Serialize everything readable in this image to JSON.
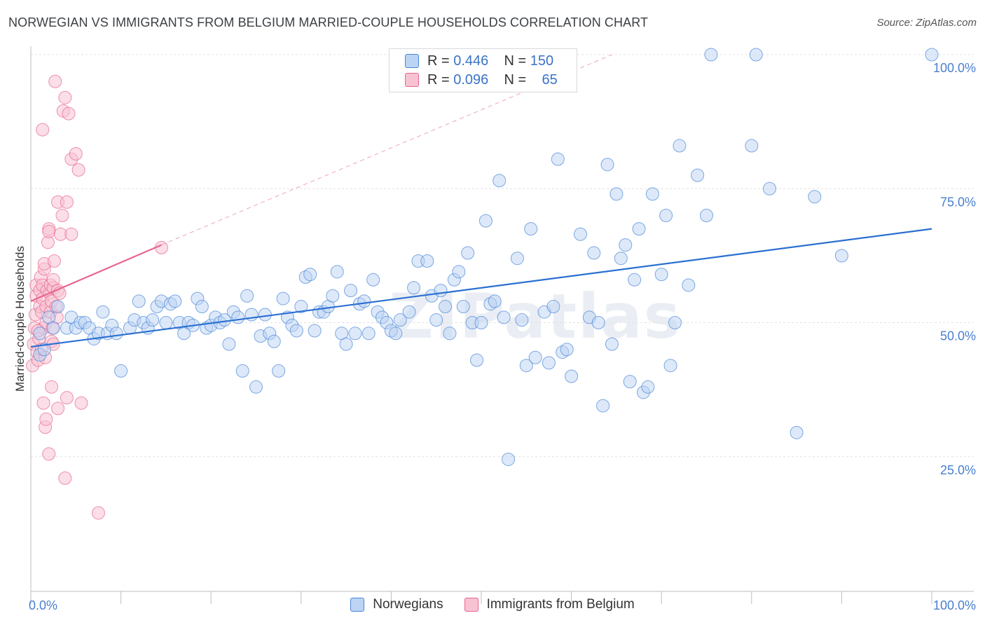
{
  "title": "NORWEGIAN VS IMMIGRANTS FROM BELGIUM MARRIED-COUPLE HOUSEHOLDS CORRELATION CHART",
  "source": "Source: ZipAtlas.com",
  "watermark": "ZIPatlas",
  "legend": {
    "rows": [
      {
        "r_label": "R =",
        "r_value": "0.446",
        "n_label": "N =",
        "n_value": "150"
      },
      {
        "r_label": "R =",
        "r_value": "0.096",
        "n_label": "N =",
        "n_value": "65"
      }
    ]
  },
  "bottom_legend": {
    "series1": "Norwegians",
    "series2": "Immigrants from Belgium"
  },
  "colors": {
    "blue": "#4a86d8",
    "blue_fill": "#bcd4f4",
    "pink": "#e8658f",
    "pink_fill": "#f7c3d3",
    "tick": "#4a7fcf"
  },
  "chart_data": {
    "type": "scatter",
    "title": "NORWEGIAN VS IMMIGRANTS FROM BELGIUM MARRIED-COUPLE HOUSEHOLDS CORRELATION CHART",
    "xlabel": "",
    "ylabel": "Married-couple Households",
    "xlim": [
      0,
      100
    ],
    "ylim": [
      0,
      100
    ],
    "x_tick_labels": [
      "0.0%",
      "100.0%"
    ],
    "y_tick_labels": [
      "25.0%",
      "50.0%",
      "75.0%",
      "100.0%"
    ],
    "y_ticks": [
      25,
      50,
      75,
      100
    ],
    "series": [
      {
        "name": "Norwegians",
        "r": 0.446,
        "n": 150,
        "trend": {
          "x": [
            0,
            100
          ],
          "y": [
            45.5,
            67.5
          ]
        },
        "points": [
          [
            1,
            44
          ],
          [
            1,
            48
          ],
          [
            1.5,
            45
          ],
          [
            2,
            51
          ],
          [
            2.5,
            49
          ],
          [
            3,
            53
          ],
          [
            4,
            49
          ],
          [
            4.5,
            51
          ],
          [
            5,
            49
          ],
          [
            5.5,
            50
          ],
          [
            6,
            50
          ],
          [
            6.5,
            49
          ],
          [
            7,
            47
          ],
          [
            7.5,
            48
          ],
          [
            8,
            52
          ],
          [
            8.5,
            48
          ],
          [
            9,
            49.5
          ],
          [
            9.5,
            48
          ],
          [
            10,
            41
          ],
          [
            11,
            49
          ],
          [
            11.5,
            50.5
          ],
          [
            12,
            54
          ],
          [
            12.5,
            50
          ],
          [
            13,
            49
          ],
          [
            13.5,
            50.5
          ],
          [
            14,
            53
          ],
          [
            14.5,
            54
          ],
          [
            15,
            50
          ],
          [
            15.5,
            53.5
          ],
          [
            16,
            54
          ],
          [
            16.5,
            50
          ],
          [
            17,
            48
          ],
          [
            17.5,
            50
          ],
          [
            18,
            49.5
          ],
          [
            18.5,
            54.5
          ],
          [
            19,
            53
          ],
          [
            19.5,
            49
          ],
          [
            20,
            49.5
          ],
          [
            20.5,
            51
          ],
          [
            21,
            50
          ],
          [
            21.5,
            50.5
          ],
          [
            22,
            46
          ],
          [
            22.5,
            52
          ],
          [
            23,
            51
          ],
          [
            23.5,
            41
          ],
          [
            24,
            55
          ],
          [
            24.5,
            51.5
          ],
          [
            25,
            38
          ],
          [
            25.5,
            47.5
          ],
          [
            26,
            51.5
          ],
          [
            26.5,
            48
          ],
          [
            27,
            46.5
          ],
          [
            27.5,
            41
          ],
          [
            28,
            54.5
          ],
          [
            28.5,
            51
          ],
          [
            29,
            49.5
          ],
          [
            29.5,
            48.5
          ],
          [
            30,
            53
          ],
          [
            30.5,
            58.5
          ],
          [
            31,
            59
          ],
          [
            31.5,
            48.5
          ],
          [
            32,
            52
          ],
          [
            32.5,
            52
          ],
          [
            33,
            53
          ],
          [
            33.5,
            55
          ],
          [
            34,
            59.5
          ],
          [
            34.5,
            48
          ],
          [
            35,
            46
          ],
          [
            35.5,
            56
          ],
          [
            36,
            48
          ],
          [
            36.5,
            53.5
          ],
          [
            37,
            54
          ],
          [
            37.5,
            48
          ],
          [
            38,
            58
          ],
          [
            38.5,
            52
          ],
          [
            39,
            51
          ],
          [
            39.5,
            50
          ],
          [
            40,
            48.5
          ],
          [
            40.5,
            48
          ],
          [
            41,
            50.5
          ],
          [
            42,
            52
          ],
          [
            42.5,
            56.5
          ],
          [
            43,
            61.5
          ],
          [
            44,
            61.5
          ],
          [
            44.5,
            55
          ],
          [
            45,
            50.5
          ],
          [
            45.5,
            56
          ],
          [
            46,
            53
          ],
          [
            46.5,
            48
          ],
          [
            47,
            58
          ],
          [
            47.5,
            59.5
          ],
          [
            48,
            53
          ],
          [
            48.5,
            63
          ],
          [
            49,
            50
          ],
          [
            49.5,
            43
          ],
          [
            50,
            50
          ],
          [
            50.5,
            69
          ],
          [
            51,
            53.5
          ],
          [
            51.5,
            54
          ],
          [
            52,
            76.5
          ],
          [
            52.5,
            51
          ],
          [
            53,
            24.5
          ],
          [
            54,
            62
          ],
          [
            54.5,
            50.5
          ],
          [
            55,
            42
          ],
          [
            55.5,
            67.5
          ],
          [
            56,
            43.5
          ],
          [
            57,
            52
          ],
          [
            57.5,
            42.5
          ],
          [
            58,
            53
          ],
          [
            58.5,
            80.5
          ],
          [
            59,
            44.5
          ],
          [
            59.5,
            45
          ],
          [
            60,
            40
          ],
          [
            61,
            66.5
          ],
          [
            62,
            51
          ],
          [
            62.5,
            63
          ],
          [
            63,
            50
          ],
          [
            63.5,
            34.5
          ],
          [
            64,
            79.5
          ],
          [
            64.5,
            46
          ],
          [
            65,
            74
          ],
          [
            65.5,
            62
          ],
          [
            66,
            64.5
          ],
          [
            66.5,
            39
          ],
          [
            67,
            58
          ],
          [
            67.5,
            67.5
          ],
          [
            68,
            37
          ],
          [
            68.5,
            38
          ],
          [
            69,
            74
          ],
          [
            70,
            59
          ],
          [
            70.5,
            70
          ],
          [
            71,
            42
          ],
          [
            71.5,
            50
          ],
          [
            72,
            83
          ],
          [
            73,
            57
          ],
          [
            74,
            77.5
          ],
          [
            75,
            70
          ],
          [
            75.5,
            100
          ],
          [
            80,
            83
          ],
          [
            80.5,
            100
          ],
          [
            82,
            75
          ],
          [
            85,
            29.5
          ],
          [
            87,
            73.5
          ],
          [
            90,
            62.5
          ],
          [
            100,
            100
          ]
        ]
      },
      {
        "name": "Immigrants from Belgium",
        "r": 0.096,
        "n": 65,
        "trend_solid": {
          "x": [
            0,
            14.5
          ],
          "y": [
            54,
            64.5
          ]
        },
        "trend_dashed": {
          "x": [
            14.5,
            64.5
          ],
          "y": [
            64.5,
            100
          ]
        },
        "points": [
          [
            0.2,
            42
          ],
          [
            0.3,
            46
          ],
          [
            0.4,
            49
          ],
          [
            0.5,
            51.5
          ],
          [
            0.6,
            55
          ],
          [
            0.6,
            57
          ],
          [
            0.7,
            44.5
          ],
          [
            0.8,
            43
          ],
          [
            0.9,
            47
          ],
          [
            1,
            53
          ],
          [
            1,
            56
          ],
          [
            1.1,
            58.5
          ],
          [
            1.2,
            45
          ],
          [
            1.2,
            52
          ],
          [
            1.3,
            54.5
          ],
          [
            1.3,
            57
          ],
          [
            1.4,
            49
          ],
          [
            1.5,
            60
          ],
          [
            1.5,
            61
          ],
          [
            1.6,
            43.5
          ],
          [
            1.7,
            50
          ],
          [
            1.7,
            53
          ],
          [
            1.8,
            56
          ],
          [
            1.9,
            65
          ],
          [
            2,
            67.5
          ],
          [
            2,
            67
          ],
          [
            2.1,
            55.5
          ],
          [
            2.2,
            52
          ],
          [
            2.2,
            57
          ],
          [
            2.3,
            46.5
          ],
          [
            2.3,
            54
          ],
          [
            2.4,
            49
          ],
          [
            2.5,
            56.5
          ],
          [
            2.5,
            58
          ],
          [
            2.6,
            61.5
          ],
          [
            2.7,
            95
          ],
          [
            2.8,
            53
          ],
          [
            2.9,
            51
          ],
          [
            3,
            56
          ],
          [
            3,
            72.5
          ],
          [
            3.2,
            55.5
          ],
          [
            3.3,
            66.5
          ],
          [
            3.5,
            70
          ],
          [
            3.6,
            89.5
          ],
          [
            3.8,
            92
          ],
          [
            4,
            72.5
          ],
          [
            4.2,
            89
          ],
          [
            4.5,
            66.5
          ],
          [
            1.3,
            86
          ],
          [
            1.4,
            35
          ],
          [
            1.6,
            30.5
          ],
          [
            1.7,
            32
          ],
          [
            2,
            25.5
          ],
          [
            2.3,
            38
          ],
          [
            2.5,
            46
          ],
          [
            3,
            34
          ],
          [
            3.8,
            21
          ],
          [
            4,
            36
          ],
          [
            4.5,
            80.5
          ],
          [
            5,
            81.5
          ],
          [
            5.3,
            78.5
          ],
          [
            5.6,
            35
          ],
          [
            7.5,
            14.5
          ],
          [
            14.5,
            64
          ],
          [
            0.8,
            48.5
          ]
        ]
      }
    ]
  }
}
